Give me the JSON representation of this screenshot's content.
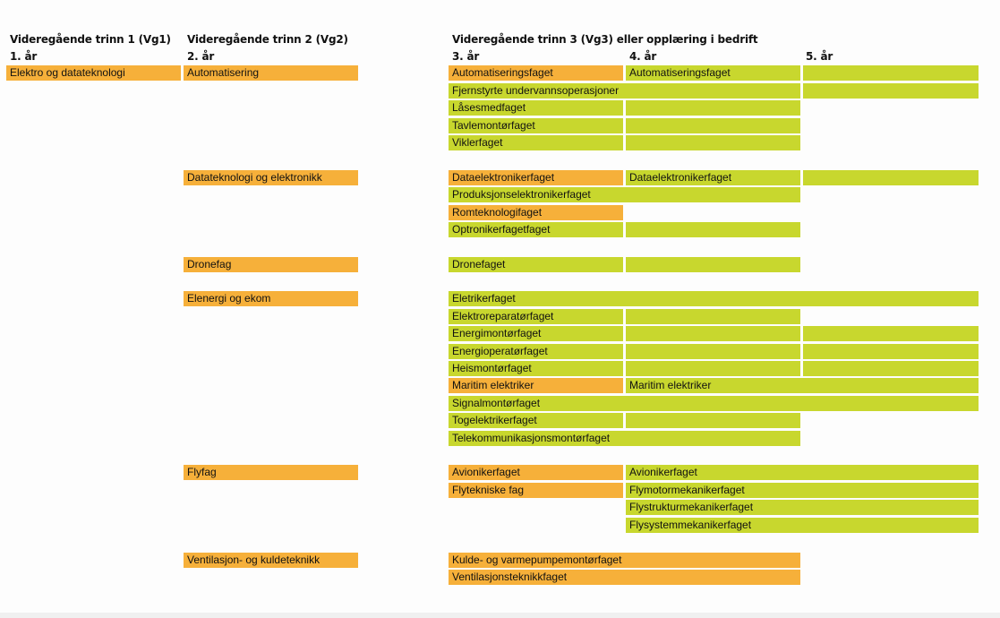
{
  "colors": {
    "orange": "#f6b03a",
    "green": "#c8d72e"
  },
  "headers": {
    "vg1": "Videregående trinn 1 (Vg1)",
    "vg2": "Videregående trinn 2 (Vg2)",
    "vg3": "Videregående trinn 3 (Vg3) eller opplæring i bedrift"
  },
  "years": {
    "y1": "1. år",
    "y2": "2. år",
    "y3": "3. år",
    "y4": "4. år",
    "y5": "5. år"
  },
  "vg1": "Elektro og datateknologi",
  "vg2": {
    "automatisering": "Automatisering",
    "datateknologi": "Datateknologi og elektronikk",
    "dronefag": "Dronefag",
    "elenergi": "Elenergi og ekom",
    "flyfag": "Flyfag",
    "ventilasjon": "Ventilasjon- og kuldeteknikk"
  },
  "vg3": {
    "automatiseringsfaget": "Automatiseringsfaget",
    "undervann": "Fjernstyrte undervannsoperasjoner",
    "lasesmed": "Låsesmedfaget",
    "tavlemontor": "Tavlemontørfaget",
    "vikler": "Viklerfaget",
    "dataelektroniker": "Dataelektronikerfaget",
    "produksjonselektroniker": "Produksjonselektronikerfaget",
    "romteknologi": "Romteknologifaget",
    "optroniker": "Optronikerfagetfaget",
    "dronefaget": "Dronefaget",
    "eletriker": "Eletrikerfaget",
    "elektroreparator": "Elektroreparatørfaget",
    "energimontor": "Energimontørfaget",
    "energioperator": "Energioperatørfaget",
    "heismontor": "Heismontørfaget",
    "maritim": "Maritim elektriker",
    "signalmontor": "Signalmontørfaget",
    "togelektriker": "Togelektrikerfaget",
    "telekom": "Telekommunikasjonsmontørfaget",
    "avioniker": "Avionikerfaget",
    "flytekniske": "Flytekniske fag",
    "kulde": "Kulde- og varmepumpemontørfaget",
    "ventilasjonsteknikk": "Ventilasjonsteknikkfaget"
  },
  "yr4": {
    "automatiseringsfaget": "Automatiseringsfaget",
    "dataelektroniker": "Dataelektronikerfaget",
    "maritim": "Maritim elektriker",
    "avioniker": "Avionikerfaget",
    "flymotor": "Flymotormekanikerfaget",
    "flystruktur": "Flystrukturmekanikerfaget",
    "flysystem": "Flysystemmekanikerfaget"
  }
}
